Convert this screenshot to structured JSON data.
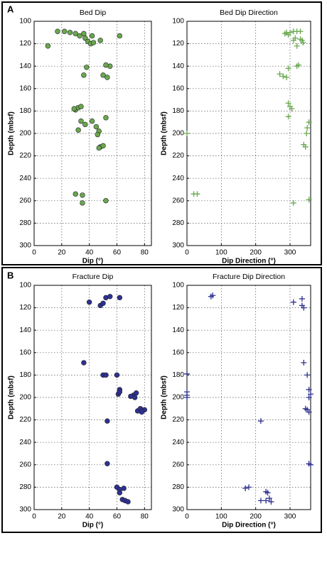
{
  "panels": [
    "A",
    "B"
  ],
  "chart_data": [
    {
      "type": "scatter",
      "title": "Bed Dip",
      "x_label": "Dip (°)",
      "y_label": "Depth (mbsf)",
      "marker": "circle",
      "color": "#6aa84f",
      "grid": true,
      "y_inverted": true,
      "xlim": [
        0,
        85
      ],
      "xticks": [
        0,
        20,
        40,
        60,
        80
      ],
      "ylim": [
        100,
        300
      ],
      "yticks": [
        100,
        120,
        140,
        160,
        180,
        200,
        220,
        240,
        260,
        280,
        300
      ],
      "x": [
        10,
        17,
        22,
        26,
        30,
        33,
        36,
        37,
        39,
        41,
        43,
        42,
        48,
        62,
        38,
        55,
        52,
        36,
        50,
        53,
        30,
        32,
        29,
        34,
        52,
        34,
        37,
        42,
        45,
        47,
        32,
        46,
        48,
        50,
        47,
        30,
        35,
        35,
        52
      ],
      "values": [
        122,
        109,
        109,
        110,
        111,
        113,
        111,
        115,
        118,
        120,
        119,
        113,
        117,
        113,
        141,
        140,
        139,
        148,
        148,
        150,
        179,
        177,
        178,
        176,
        186,
        189,
        192,
        189,
        194,
        198,
        197,
        201,
        212,
        211,
        213,
        254,
        255,
        262,
        260
      ]
    },
    {
      "type": "scatter",
      "title": "Bed Dip Direction",
      "x_label": "Dip Direction (°)",
      "y_label": "Depth (mbsf)",
      "marker": "plus",
      "color": "#6aa84f",
      "grid": true,
      "y_inverted": true,
      "xlim": [
        0,
        360
      ],
      "xticks": [
        0,
        100,
        200,
        300
      ],
      "ylim": [
        100,
        300
      ],
      "yticks": [
        100,
        120,
        140,
        160,
        180,
        200,
        220,
        240,
        260,
        280,
        300
      ],
      "x": [
        290,
        285,
        295,
        300,
        310,
        320,
        330,
        315,
        310,
        330,
        335,
        338,
        320,
        295,
        320,
        325,
        270,
        280,
        290,
        295,
        300,
        305,
        295,
        355,
        350,
        348,
        0,
        340,
        345,
        20,
        30,
        310,
        355
      ],
      "values": [
        110,
        111,
        112,
        110,
        109,
        109,
        109,
        115,
        117,
        116,
        117,
        119,
        122,
        142,
        140,
        139,
        147,
        149,
        150,
        173,
        176,
        178,
        185,
        190,
        195,
        200,
        200,
        210,
        212,
        254,
        254,
        262,
        259
      ]
    },
    {
      "type": "scatter",
      "title": "Fracture Dip",
      "x_label": "Dip (°)",
      "y_label": "Depth (mbsf)",
      "marker": "circle",
      "color": "#2e3192",
      "grid": true,
      "y_inverted": true,
      "xlim": [
        0,
        85
      ],
      "xticks": [
        0,
        20,
        40,
        60,
        80
      ],
      "ylim": [
        100,
        300
      ],
      "yticks": [
        100,
        120,
        140,
        160,
        180,
        200,
        220,
        240,
        260,
        280,
        300
      ],
      "x": [
        40,
        48,
        50,
        52,
        55,
        62,
        36,
        50,
        52,
        60,
        62,
        61,
        62,
        72,
        73,
        70,
        74,
        75,
        77,
        80,
        78,
        53,
        53,
        60,
        62,
        65,
        62,
        64,
        66,
        68
      ],
      "values": [
        115,
        118,
        116,
        111,
        110,
        111,
        169,
        180,
        180,
        180,
        193,
        197,
        195,
        198,
        200,
        199,
        196,
        212,
        210,
        211,
        213,
        221,
        259,
        280,
        282,
        281,
        285,
        291,
        292,
        293
      ]
    },
    {
      "type": "scatter",
      "title": "Fracture Dip Direction",
      "x_label": "Dip Direction (°)",
      "y_label": "Depth (mbsf)",
      "marker": "plus",
      "color": "#2e3192",
      "grid": true,
      "y_inverted": true,
      "xlim": [
        0,
        360
      ],
      "xticks": [
        0,
        100,
        200,
        300
      ],
      "ylim": [
        100,
        300
      ],
      "yticks": [
        100,
        120,
        140,
        160,
        180,
        200,
        220,
        240,
        260,
        280,
        300
      ],
      "x": [
        70,
        75,
        310,
        335,
        335,
        340,
        0,
        340,
        350,
        0,
        0,
        0,
        355,
        360,
        355,
        345,
        350,
        355,
        215,
        355,
        360,
        170,
        180,
        230,
        235,
        215,
        230,
        240,
        245
      ],
      "values": [
        110,
        109,
        115,
        112,
        118,
        120,
        179,
        169,
        180,
        195,
        198,
        200,
        193,
        197,
        200,
        210,
        211,
        213,
        221,
        259,
        260,
        281,
        280,
        284,
        285,
        292,
        292,
        290,
        293
      ]
    }
  ]
}
